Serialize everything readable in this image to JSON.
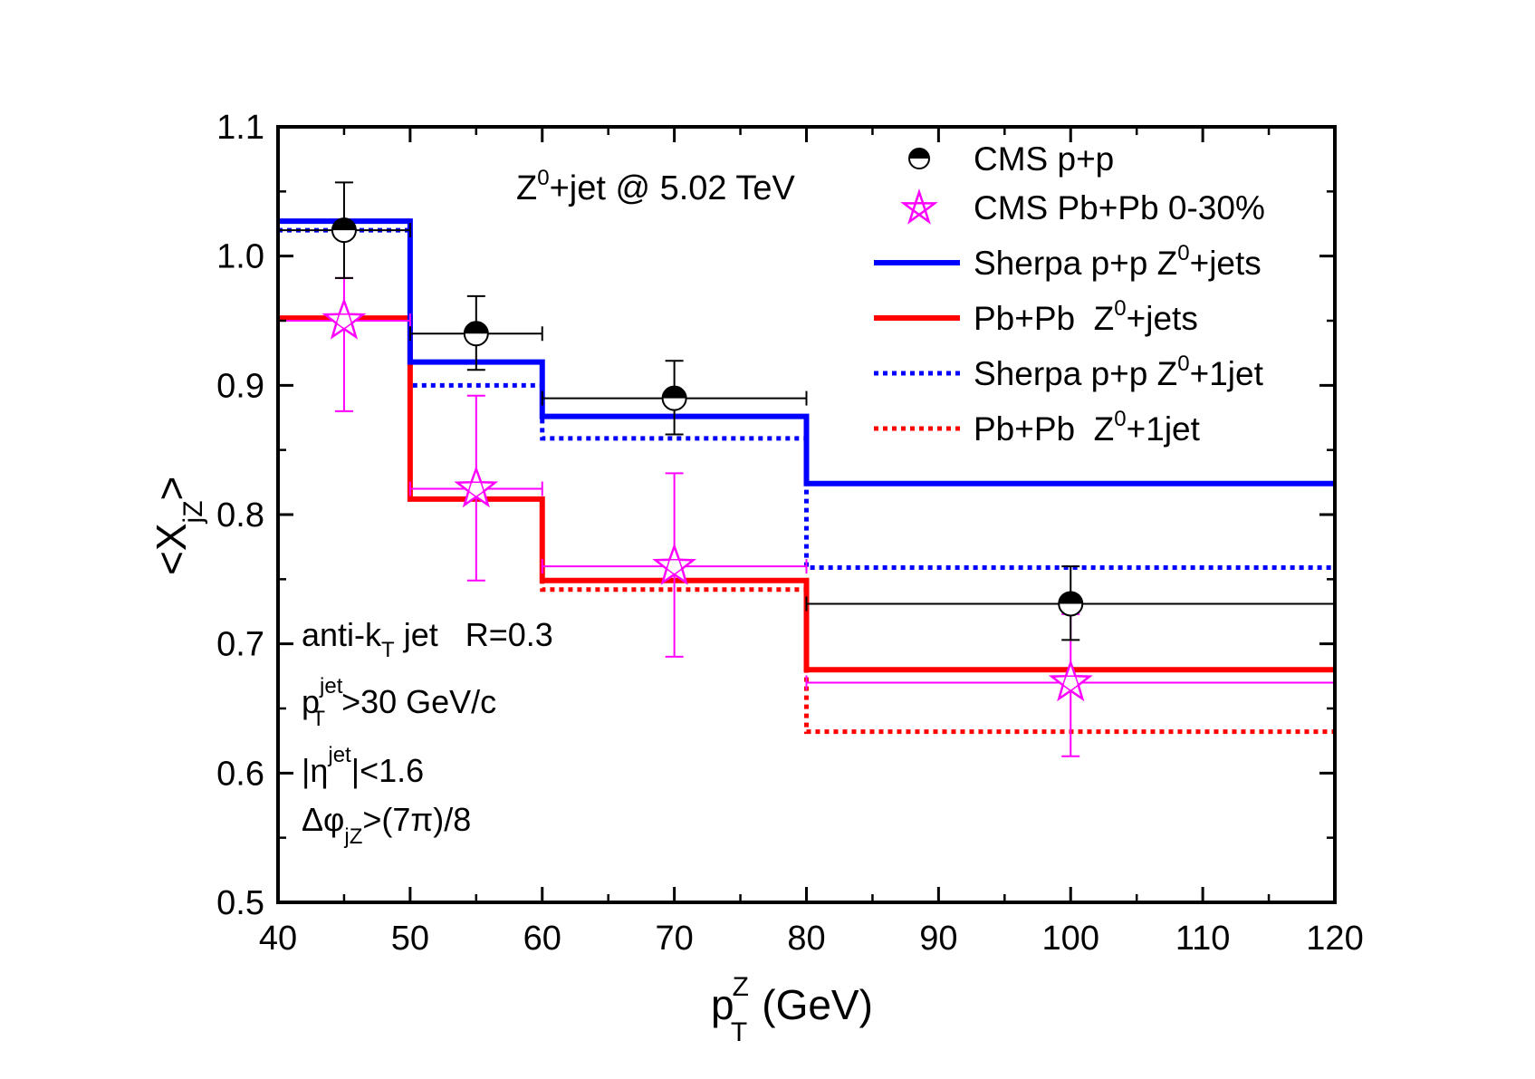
{
  "chart_data": {
    "type": "line",
    "title": "Z⁰+jet @ 5.02 TeV",
    "title_parts": {
      "base": "Z",
      "sup": "0",
      "rest": "+jet @ 5.02 TeV"
    },
    "xlabel": "p_T^Z (GeV)",
    "xlabel_parts": {
      "base": "p",
      "sub": "T",
      "sup": "Z",
      "unit": "(GeV)"
    },
    "ylabel": "<X_jZ>",
    "ylabel_parts": {
      "open": "<X",
      "sub": "jZ",
      "close": ">"
    },
    "xlim": [
      40,
      120
    ],
    "ylim": [
      0.5,
      1.1
    ],
    "xticks": [
      40,
      50,
      60,
      70,
      80,
      90,
      100,
      110,
      120
    ],
    "xtick_labels": [
      "40",
      "50",
      "60",
      "70",
      "80",
      "90",
      "100",
      "110",
      "120"
    ],
    "yticks": [
      0.5,
      0.6,
      0.7,
      0.8,
      0.9,
      1.0,
      1.1
    ],
    "ytick_labels": [
      "0.5",
      "0.6",
      "0.7",
      "0.8",
      "0.9",
      "1.0",
      "1.1"
    ],
    "grid": false,
    "legend_position": "top-right",
    "bin_edges": [
      40,
      50,
      60,
      80,
      120
    ],
    "series": [
      {
        "name": "CMS p+p",
        "kind": "points",
        "marker": "half-filled-circle",
        "color": "#000000",
        "points": [
          {
            "x": 45,
            "y": 1.02,
            "xlo": 40,
            "xhi": 50,
            "ylo": 0.983,
            "yhi": 1.057
          },
          {
            "x": 55,
            "y": 0.94,
            "xlo": 50,
            "xhi": 60,
            "ylo": 0.912,
            "yhi": 0.969
          },
          {
            "x": 70,
            "y": 0.89,
            "xlo": 60,
            "xhi": 80,
            "ylo": 0.862,
            "yhi": 0.919
          },
          {
            "x": 100,
            "y": 0.731,
            "xlo": 80,
            "xhi": 120,
            "ylo": 0.703,
            "yhi": 0.76
          }
        ]
      },
      {
        "name": "CMS Pb+Pb 0-30%",
        "kind": "points",
        "marker": "open-star",
        "color": "#ff00ff",
        "points": [
          {
            "x": 45,
            "y": 0.95,
            "xlo": 40,
            "xhi": 50,
            "ylo": 0.88,
            "yhi": 0.983
          },
          {
            "x": 55,
            "y": 0.82,
            "xlo": 50,
            "xhi": 60,
            "ylo": 0.749,
            "yhi": 0.892
          },
          {
            "x": 70,
            "y": 0.76,
            "xlo": 60,
            "xhi": 80,
            "ylo": 0.69,
            "yhi": 0.832
          },
          {
            "x": 100,
            "y": 0.67,
            "xlo": 80,
            "xhi": 120,
            "ylo": 0.613,
            "yhi": 0.723
          }
        ]
      },
      {
        "name": "Sherpa p+p Z⁰+jets",
        "kind": "step",
        "style": "solid",
        "color": "#0000ff",
        "values": [
          1.027,
          0.918,
          0.876,
          0.824
        ]
      },
      {
        "name": "Pb+Pb  Z⁰+jets",
        "kind": "step",
        "style": "solid",
        "color": "#ff0000",
        "values": [
          0.952,
          0.812,
          0.749,
          0.68
        ]
      },
      {
        "name": "Sherpa p+p Z⁰+1jet",
        "kind": "step",
        "style": "dotted",
        "color": "#0000ff",
        "values": [
          1.02,
          0.9,
          0.859,
          0.759
        ]
      },
      {
        "name": "Pb+Pb  Z⁰+1jet",
        "kind": "step",
        "style": "dotted",
        "color": "#ff0000",
        "values": [
          0.952,
          0.812,
          0.742,
          0.632
        ]
      }
    ],
    "legend": [
      {
        "label": "CMS p+p",
        "sup_after": "",
        "rest": ""
      },
      {
        "label": "CMS Pb+Pb 0-30%",
        "sup_after": "",
        "rest": ""
      },
      {
        "label": "Sherpa p+p Z",
        "sup_after": "0",
        "rest": "+jets"
      },
      {
        "label": "Pb+Pb  Z",
        "sup_after": "0",
        "rest": "+jets"
      },
      {
        "label": "Sherpa p+p Z",
        "sup_after": "0",
        "rest": "+1jet"
      },
      {
        "label": "Pb+Pb  Z",
        "sup_after": "0",
        "rest": "+1jet"
      }
    ],
    "annotations": [
      {
        "id": "jet-algo",
        "text": "anti-k_T jet   R=0.3",
        "parts": {
          "a": "anti-k",
          "sub": "T",
          "b": " jet   R=0.3"
        }
      },
      {
        "id": "jet-pt-cut",
        "text": "p_T^jet>30 GeV/c",
        "parts": {
          "a": "p",
          "sub": "T",
          "sup": "jet",
          "b": ">30 GeV/c"
        }
      },
      {
        "id": "eta-cut",
        "text": "|η^jet|<1.6",
        "parts": {
          "a": "|η",
          "sup": "jet",
          "b": "|<1.6"
        }
      },
      {
        "id": "dphi-cut",
        "text": "Δφ_jZ>(7π)/8",
        "parts": {
          "a": "Δφ",
          "sub": "jZ",
          "b": ">(7π)/8"
        }
      }
    ]
  }
}
